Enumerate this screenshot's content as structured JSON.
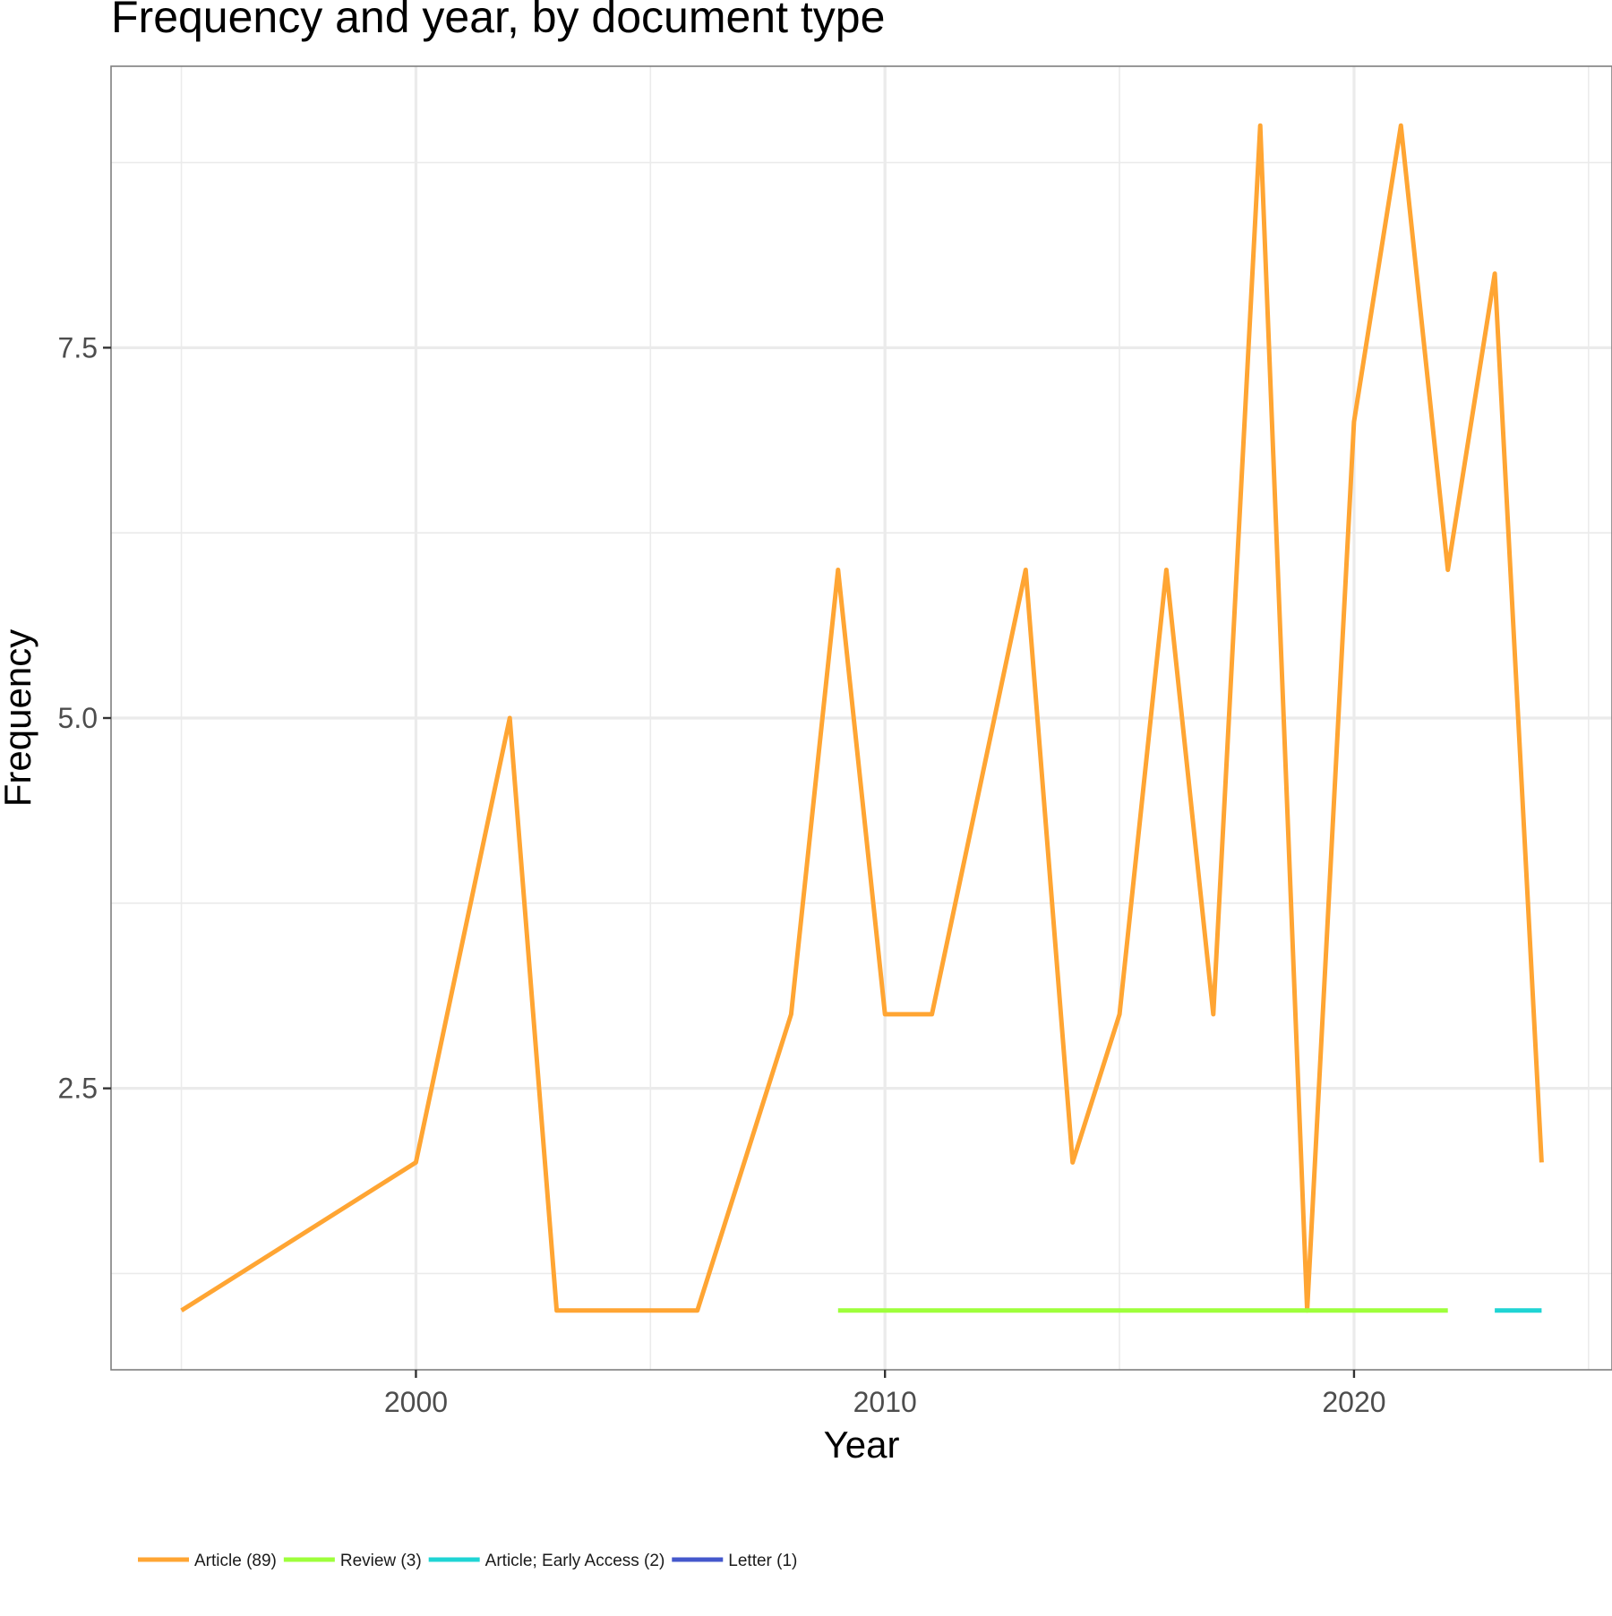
{
  "chart_data": {
    "type": "line",
    "title": "Frequency and year, by document type",
    "xlabel": "Year",
    "ylabel": "Frequency",
    "xlim": [
      1993.5,
      2025.5
    ],
    "ylim": [
      0.6,
      9.4
    ],
    "x_ticks": [
      2000,
      2010,
      2020
    ],
    "x_tick_labels": [
      "2000",
      "2010",
      "2020"
    ],
    "x_minor_ticks": [
      1995,
      2005,
      2015,
      2025
    ],
    "y_ticks": [
      2.5,
      5.0,
      7.5
    ],
    "y_tick_labels": [
      "2.5",
      "5.0",
      "7.5"
    ],
    "y_minor_ticks": [
      1.25,
      3.75,
      6.25,
      8.75
    ],
    "grid": true,
    "legend_position": "bottom-left",
    "series": [
      {
        "name": "Article (89)",
        "color": "#FFA533",
        "x": [
          1995,
          2000,
          2002,
          2003,
          2006,
          2008,
          2009,
          2010,
          2011,
          2013,
          2014,
          2015,
          2016,
          2017,
          2018,
          2019,
          2020,
          2021,
          2022,
          2023,
          2024
        ],
        "y": [
          1,
          2,
          5,
          1,
          1,
          3,
          6,
          3,
          3,
          6,
          2,
          3,
          6,
          3,
          9,
          1,
          7,
          9,
          6,
          8,
          2
        ]
      },
      {
        "name": "Review (3)",
        "color": "#9EFF3B",
        "x": [
          2009,
          2022
        ],
        "y": [
          1,
          1
        ]
      },
      {
        "name": "Article; Early Access (2)",
        "color": "#1FD4D4",
        "x": [
          2023,
          2024
        ],
        "y": [
          1,
          1
        ]
      },
      {
        "name": "Letter (1)",
        "color": "#4458CC",
        "x": [],
        "y": []
      }
    ]
  }
}
